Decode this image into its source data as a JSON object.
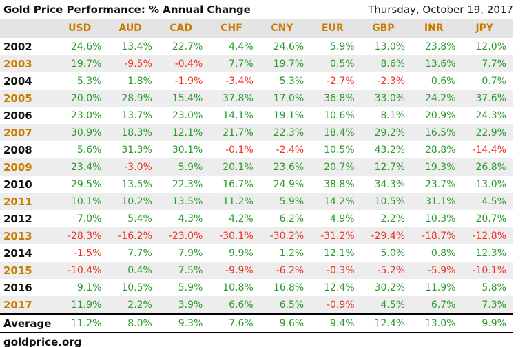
{
  "header": {
    "title": "Gold Price Performance: % Annual Change",
    "date": "Thursday, October 19, 2017"
  },
  "chart_data": {
    "type": "table",
    "title": "Gold Price Performance: % Annual Change",
    "date": "Thursday, October 19, 2017",
    "unit": "percent annual change",
    "columns": [
      "USD",
      "AUD",
      "CAD",
      "CHF",
      "CNY",
      "EUR",
      "GBP",
      "INR",
      "JPY"
    ],
    "rows": [
      {
        "year": "2002",
        "values": [
          24.6,
          13.4,
          22.7,
          4.4,
          24.6,
          5.9,
          13.0,
          23.8,
          12.0
        ]
      },
      {
        "year": "2003",
        "values": [
          19.7,
          -9.5,
          -0.4,
          7.7,
          19.7,
          0.5,
          8.6,
          13.6,
          7.7
        ]
      },
      {
        "year": "2004",
        "values": [
          5.3,
          1.8,
          -1.9,
          -3.4,
          5.3,
          -2.7,
          -2.3,
          0.6,
          0.7
        ]
      },
      {
        "year": "2005",
        "values": [
          20.0,
          28.9,
          15.4,
          37.8,
          17.0,
          36.8,
          33.0,
          24.2,
          37.6
        ]
      },
      {
        "year": "2006",
        "values": [
          23.0,
          13.7,
          23.0,
          14.1,
          19.1,
          10.6,
          8.1,
          20.9,
          24.3
        ]
      },
      {
        "year": "2007",
        "values": [
          30.9,
          18.3,
          12.1,
          21.7,
          22.3,
          18.4,
          29.2,
          16.5,
          22.9
        ]
      },
      {
        "year": "2008",
        "values": [
          5.6,
          31.3,
          30.1,
          -0.1,
          -2.4,
          10.5,
          43.2,
          28.8,
          -14.4
        ]
      },
      {
        "year": "2009",
        "values": [
          23.4,
          -3.0,
          5.9,
          20.1,
          23.6,
          20.7,
          12.7,
          19.3,
          26.8
        ]
      },
      {
        "year": "2010",
        "values": [
          29.5,
          13.5,
          22.3,
          16.7,
          24.9,
          38.8,
          34.3,
          23.7,
          13.0
        ]
      },
      {
        "year": "2011",
        "values": [
          10.1,
          10.2,
          13.5,
          11.2,
          5.9,
          14.2,
          10.5,
          31.1,
          4.5
        ]
      },
      {
        "year": "2012",
        "values": [
          7.0,
          5.4,
          4.3,
          4.2,
          6.2,
          4.9,
          2.2,
          10.3,
          20.7
        ]
      },
      {
        "year": "2013",
        "values": [
          -28.3,
          -16.2,
          -23.0,
          -30.1,
          -30.2,
          -31.2,
          -29.4,
          -18.7,
          -12.8
        ]
      },
      {
        "year": "2014",
        "values": [
          -1.5,
          7.7,
          7.9,
          9.9,
          1.2,
          12.1,
          5.0,
          0.8,
          12.3
        ]
      },
      {
        "year": "2015",
        "values": [
          -10.4,
          0.4,
          7.5,
          -9.9,
          -6.2,
          -0.3,
          -5.2,
          -5.9,
          -10.1
        ]
      },
      {
        "year": "2016",
        "values": [
          9.1,
          10.5,
          5.9,
          10.8,
          16.8,
          12.4,
          30.2,
          11.9,
          5.8
        ]
      },
      {
        "year": "2017",
        "values": [
          11.9,
          2.2,
          3.9,
          6.6,
          6.5,
          -0.9,
          4.5,
          6.7,
          7.3
        ]
      }
    ],
    "average_label": "Average",
    "average": [
      11.2,
      8.0,
      9.3,
      7.6,
      9.6,
      9.4,
      12.4,
      13.0,
      9.9
    ],
    "value_suffix": "%"
  },
  "footer": {
    "source": "goldprice.org"
  },
  "colors": {
    "positive": "#2a9b2a",
    "negative": "#ee3224",
    "accent_orange": "#c87d00",
    "header_bg": "#e4e4e4",
    "row_alt_bg": "#ededed"
  }
}
